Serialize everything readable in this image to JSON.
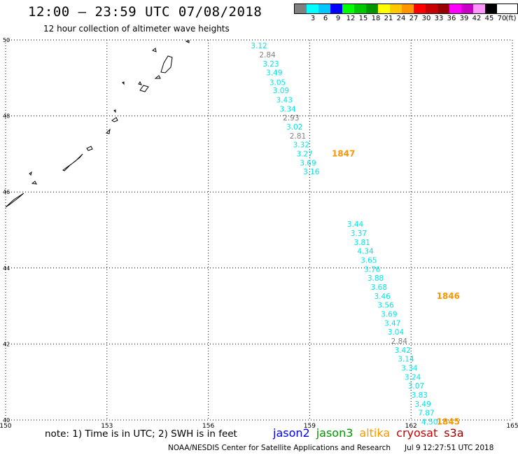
{
  "header": {
    "title": "12:00 – 23:59 UTC 07/08/2018",
    "subtitle": "12 hour collection of altimeter wave heights"
  },
  "legend": {
    "unit": "(ft)",
    "entries": [
      {
        "label": "",
        "color": "#808080"
      },
      {
        "label": "3",
        "color": "#00ffff"
      },
      {
        "label": "6",
        "color": "#00c8ff"
      },
      {
        "label": "9",
        "color": "#0000ff"
      },
      {
        "label": "12",
        "color": "#00ff00"
      },
      {
        "label": "15",
        "color": "#00c800"
      },
      {
        "label": "18",
        "color": "#009600"
      },
      {
        "label": "21",
        "color": "#ffff00"
      },
      {
        "label": "24",
        "color": "#ffc800"
      },
      {
        "label": "27",
        "color": "#ff9600"
      },
      {
        "label": "30",
        "color": "#ff0000"
      },
      {
        "label": "33",
        "color": "#c80000"
      },
      {
        "label": "36",
        "color": "#960000"
      },
      {
        "label": "39",
        "color": "#ff00ff"
      },
      {
        "label": "42",
        "color": "#c800c8"
      },
      {
        "label": "45",
        "color": "#ff96ff"
      },
      {
        "label": "70",
        "color": "#000000"
      }
    ]
  },
  "chart_data": {
    "type": "scatter",
    "xlim": [
      150,
      165
    ],
    "ylim": [
      40,
      50
    ],
    "x_ticks": [
      "150",
      "153",
      "156",
      "159",
      "162",
      "165"
    ],
    "y_ticks": [
      "40",
      "42",
      "44",
      "46",
      "48",
      "50"
    ],
    "grid": true,
    "colors": {
      "gray": "#808080",
      "cyan": "#00e6e6",
      "time": "#ff9600"
    },
    "series": [
      {
        "points": [
          {
            "lon": 157.5,
            "lat": 49.85,
            "v": "3.12",
            "c": "cyan"
          },
          {
            "lon": 157.75,
            "lat": 49.61,
            "v": "2.84",
            "c": "gray"
          },
          {
            "lon": 157.85,
            "lat": 49.37,
            "v": "3.23",
            "c": "cyan"
          },
          {
            "lon": 157.95,
            "lat": 49.14,
            "v": "3.49",
            "c": "cyan"
          },
          {
            "lon": 158.05,
            "lat": 48.89,
            "v": "3.05",
            "c": "cyan"
          },
          {
            "lon": 158.15,
            "lat": 48.67,
            "v": "3.09",
            "c": "cyan"
          },
          {
            "lon": 158.25,
            "lat": 48.43,
            "v": "3.43",
            "c": "cyan"
          },
          {
            "lon": 158.35,
            "lat": 48.19,
            "v": "3.34",
            "c": "cyan"
          },
          {
            "lon": 158.45,
            "lat": 47.96,
            "v": "2.93",
            "c": "gray"
          },
          {
            "lon": 158.55,
            "lat": 47.72,
            "v": "3.02",
            "c": "cyan"
          },
          {
            "lon": 158.65,
            "lat": 47.48,
            "v": "2.81",
            "c": "gray"
          },
          {
            "lon": 158.75,
            "lat": 47.25,
            "v": "3.32",
            "c": "cyan"
          },
          {
            "lon": 158.85,
            "lat": 47.01,
            "v": "3.27",
            "c": "cyan"
          },
          {
            "lon": 158.95,
            "lat": 46.77,
            "v": "3.69",
            "c": "cyan"
          },
          {
            "lon": 159.05,
            "lat": 46.54,
            "v": "3.16",
            "c": "cyan"
          }
        ],
        "time_label": "1847",
        "time_at": {
          "lon": 160.0,
          "lat": 47.01
        }
      },
      {
        "points": [
          {
            "lon": 160.35,
            "lat": 45.16,
            "v": "3.44",
            "c": "cyan"
          },
          {
            "lon": 160.45,
            "lat": 44.92,
            "v": "3.37",
            "c": "cyan"
          },
          {
            "lon": 160.55,
            "lat": 44.68,
            "v": "3.81",
            "c": "cyan"
          },
          {
            "lon": 160.65,
            "lat": 44.45,
            "v": "4.34",
            "c": "cyan"
          },
          {
            "lon": 160.75,
            "lat": 44.21,
            "v": "3.65",
            "c": "cyan"
          },
          {
            "lon": 160.85,
            "lat": 43.97,
            "v": "3.76",
            "c": "cyan"
          },
          {
            "lon": 160.95,
            "lat": 43.74,
            "v": "3.88",
            "c": "cyan"
          },
          {
            "lon": 161.05,
            "lat": 43.5,
            "v": "3.68",
            "c": "cyan"
          },
          {
            "lon": 161.15,
            "lat": 43.26,
            "v": "3.46",
            "c": "cyan"
          },
          {
            "lon": 161.25,
            "lat": 43.03,
            "v": "3.56",
            "c": "cyan"
          },
          {
            "lon": 161.35,
            "lat": 42.79,
            "v": "3.69",
            "c": "cyan"
          },
          {
            "lon": 161.45,
            "lat": 42.55,
            "v": "3.47",
            "c": "cyan"
          },
          {
            "lon": 161.55,
            "lat": 42.32,
            "v": "3.04",
            "c": "cyan"
          },
          {
            "lon": 161.65,
            "lat": 42.08,
            "v": "2.84",
            "c": "gray"
          },
          {
            "lon": 161.75,
            "lat": 41.84,
            "v": "3.42",
            "c": "cyan"
          },
          {
            "lon": 161.85,
            "lat": 41.61,
            "v": "3.14",
            "c": "cyan"
          },
          {
            "lon": 161.95,
            "lat": 41.37,
            "v": "3.34",
            "c": "cyan"
          },
          {
            "lon": 162.05,
            "lat": 41.13,
            "v": "3.24",
            "c": "cyan"
          },
          {
            "lon": 162.15,
            "lat": 40.9,
            "v": "3.07",
            "c": "cyan"
          },
          {
            "lon": 162.25,
            "lat": 40.66,
            "v": "3.83",
            "c": "cyan"
          },
          {
            "lon": 162.35,
            "lat": 40.42,
            "v": "3.49",
            "c": "cyan"
          },
          {
            "lon": 162.45,
            "lat": 40.19,
            "v": "7.87",
            "c": "cyan"
          },
          {
            "lon": 162.55,
            "lat": 39.95,
            "v": "4.50",
            "c": "cyan"
          }
        ],
        "time_label": "1846",
        "time_at": {
          "lon": 163.1,
          "lat": 43.26
        }
      },
      {
        "points": [],
        "time_label": "1845",
        "time_at": {
          "lon": 163.1,
          "lat": 39.95
        }
      }
    ]
  },
  "footer": {
    "note": "note: 1) Time is in UTC; 2) SWH is in feet",
    "satellites": [
      {
        "name": "jason2",
        "color": "#0000ff"
      },
      {
        "name": "jason3",
        "color": "#009600"
      },
      {
        "name": "altika",
        "color": "#ff9600"
      },
      {
        "name": "cryosat",
        "color": "#c80000"
      },
      {
        "name": "s3a",
        "color": "#960000"
      }
    ],
    "credit": "NOAA/NESDIS Center for Satellite Applications and Research",
    "timestamp": "Jul  9 12:27:51 UTC 2018"
  }
}
